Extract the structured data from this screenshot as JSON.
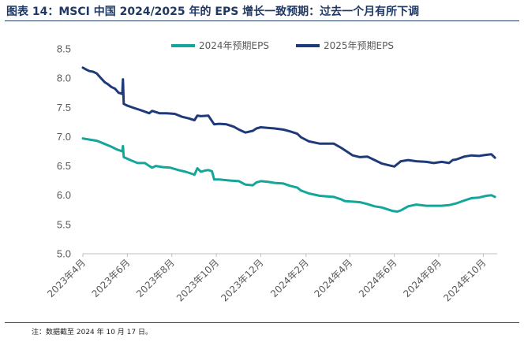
{
  "figure": {
    "title": "图表 14：MSCI 中国 2024/2025 年的 EPS 增长一致预期：过去一个月有所下调",
    "note": "注：数据截至 2024 年 10 月 17 日。"
  },
  "colors": {
    "series_2024": "#14a69a",
    "series_2025": "#1f3a7a",
    "title": "#1f3864"
  },
  "chart_data": {
    "type": "line",
    "title": "",
    "xlabel": "",
    "ylabel": "",
    "ylim": [
      5.0,
      8.5
    ],
    "yticks": [
      5.0,
      5.5,
      6.0,
      6.5,
      7.0,
      7.5,
      8.0,
      8.5
    ],
    "yticklabels": [
      "5.0",
      "5.5",
      "6.0",
      "6.5",
      "7.0",
      "7.5",
      "8.0",
      "8.5"
    ],
    "xlim": [
      "2023-04-01",
      "2024-10-20"
    ],
    "xticks": [
      "2023-04-01",
      "2023-06-01",
      "2023-08-01",
      "2023-10-01",
      "2023-12-01",
      "2024-02-01",
      "2024-04-01",
      "2024-06-01",
      "2024-08-01",
      "2024-10-01"
    ],
    "xticklabels": [
      "2023年4月",
      "2023年6月",
      "2023年8月",
      "2023年10月",
      "2023年12月",
      "2024年2月",
      "2024年4月",
      "2024年6月",
      "2024年8月",
      "2024年10月"
    ],
    "grid": false,
    "legend_position": "top-center",
    "series": [
      {
        "name": "2024年预期EPS",
        "color": "#14a69a",
        "x": [
          "2023-04-01",
          "2023-04-10",
          "2023-04-20",
          "2023-04-30",
          "2023-05-10",
          "2023-05-18",
          "2023-05-25",
          "2023-05-26",
          "2023-05-27",
          "2023-06-05",
          "2023-06-15",
          "2023-06-25",
          "2023-07-01",
          "2023-07-05",
          "2023-07-10",
          "2023-07-20",
          "2023-07-30",
          "2023-08-10",
          "2023-08-20",
          "2023-08-30",
          "2023-09-01",
          "2023-09-05",
          "2023-09-10",
          "2023-09-15",
          "2023-09-20",
          "2023-09-25",
          "2023-09-28",
          "2023-10-05",
          "2023-10-20",
          "2023-11-01",
          "2023-11-10",
          "2023-11-20",
          "2023-11-25",
          "2023-12-01",
          "2023-12-10",
          "2023-12-20",
          "2024-01-01",
          "2024-01-10",
          "2024-01-20",
          "2024-01-25",
          "2024-02-05",
          "2024-02-20",
          "2024-03-01",
          "2024-03-10",
          "2024-03-20",
          "2024-03-25",
          "2024-04-05",
          "2024-04-15",
          "2024-04-25",
          "2024-05-05",
          "2024-05-15",
          "2024-05-20",
          "2024-05-25",
          "2024-05-30",
          "2024-06-05",
          "2024-06-10",
          "2024-06-20",
          "2024-07-01",
          "2024-07-15",
          "2024-07-25",
          "2024-08-05",
          "2024-08-15",
          "2024-08-25",
          "2024-09-05",
          "2024-09-15",
          "2024-09-25",
          "2024-10-05",
          "2024-10-12",
          "2024-10-17"
        ],
        "y": [
          6.97,
          6.95,
          6.93,
          6.88,
          6.83,
          6.78,
          6.75,
          6.84,
          6.65,
          6.6,
          6.55,
          6.55,
          6.5,
          6.47,
          6.5,
          6.48,
          6.47,
          6.43,
          6.4,
          6.36,
          6.35,
          6.46,
          6.4,
          6.42,
          6.43,
          6.41,
          6.27,
          6.27,
          6.25,
          6.24,
          6.18,
          6.17,
          6.22,
          6.24,
          6.23,
          6.21,
          6.2,
          6.16,
          6.13,
          6.08,
          6.03,
          5.99,
          5.98,
          5.97,
          5.93,
          5.9,
          5.89,
          5.88,
          5.85,
          5.81,
          5.79,
          5.77,
          5.75,
          5.73,
          5.72,
          5.74,
          5.81,
          5.84,
          5.82,
          5.82,
          5.82,
          5.83,
          5.86,
          5.91,
          5.95,
          5.96,
          5.99,
          6.0,
          5.97
        ]
      },
      {
        "name": "2025年预期EPS",
        "color": "#1f3a7a",
        "x": [
          "2023-04-01",
          "2023-04-05",
          "2023-04-10",
          "2023-04-15",
          "2023-04-20",
          "2023-04-25",
          "2023-05-01",
          "2023-05-05",
          "2023-05-10",
          "2023-05-15",
          "2023-05-20",
          "2023-05-25",
          "2023-05-26",
          "2023-05-27",
          "2023-06-01",
          "2023-06-10",
          "2023-06-20",
          "2023-07-01",
          "2023-07-05",
          "2023-07-15",
          "2023-07-25",
          "2023-08-05",
          "2023-08-15",
          "2023-08-25",
          "2023-09-01",
          "2023-09-05",
          "2023-09-10",
          "2023-09-20",
          "2023-09-28",
          "2023-10-05",
          "2023-10-15",
          "2023-10-25",
          "2023-11-01",
          "2023-11-10",
          "2023-11-20",
          "2023-11-25",
          "2023-12-01",
          "2023-12-10",
          "2023-12-20",
          "2024-01-01",
          "2024-01-10",
          "2024-01-20",
          "2024-01-25",
          "2024-02-05",
          "2024-02-20",
          "2024-03-01",
          "2024-03-10",
          "2024-03-20",
          "2024-03-25",
          "2024-04-05",
          "2024-04-15",
          "2024-04-25",
          "2024-05-05",
          "2024-05-15",
          "2024-05-25",
          "2024-06-01",
          "2024-06-05",
          "2024-06-10",
          "2024-06-20",
          "2024-07-01",
          "2024-07-15",
          "2024-07-25",
          "2024-08-05",
          "2024-08-15",
          "2024-08-20",
          "2024-08-25",
          "2024-09-05",
          "2024-09-15",
          "2024-09-25",
          "2024-10-05",
          "2024-10-12",
          "2024-10-17"
        ],
        "y": [
          8.18,
          8.15,
          8.12,
          8.11,
          8.08,
          8.01,
          7.93,
          7.9,
          7.85,
          7.82,
          7.75,
          7.73,
          7.98,
          7.56,
          7.53,
          7.49,
          7.45,
          7.4,
          7.44,
          7.4,
          7.4,
          7.39,
          7.34,
          7.31,
          7.28,
          7.36,
          7.35,
          7.36,
          7.21,
          7.22,
          7.21,
          7.17,
          7.12,
          7.07,
          7.1,
          7.14,
          7.16,
          7.15,
          7.14,
          7.12,
          7.09,
          7.05,
          6.99,
          6.92,
          6.88,
          6.88,
          6.88,
          6.81,
          6.77,
          6.68,
          6.65,
          6.66,
          6.6,
          6.54,
          6.51,
          6.49,
          6.53,
          6.58,
          6.6,
          6.58,
          6.57,
          6.55,
          6.57,
          6.55,
          6.6,
          6.61,
          6.66,
          6.68,
          6.67,
          6.69,
          6.7,
          6.64
        ]
      }
    ]
  }
}
